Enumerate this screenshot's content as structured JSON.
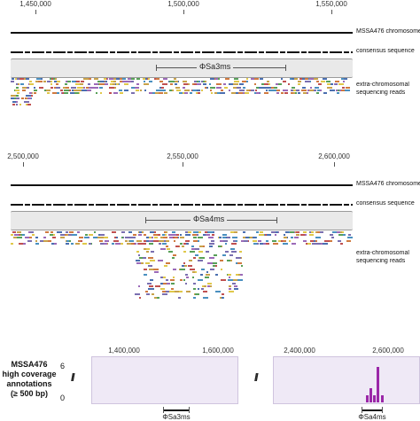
{
  "panel1": {
    "ticks": [
      "1,450,000",
      "1,500,000",
      "1,550,000"
    ],
    "track_labels": [
      "MSSA476 chromosome",
      "consensus sequence",
      "extra-chromosomal",
      "sequencing reads"
    ],
    "phage": "ΦSa3ms"
  },
  "panel2": {
    "ticks": [
      "2,500,000",
      "2,550,000",
      "2,600,000"
    ],
    "track_labels": [
      "MSSA476 chromosome",
      "consensus sequence",
      "extra-chromosomal",
      "sequencing reads"
    ],
    "phage": "ΦSa4ms"
  },
  "bottom": {
    "ylabel_lines": [
      "MSSA476",
      "high coverage",
      "annotations",
      "(≥ 500 bp)"
    ],
    "ymax": "6",
    "ymin": "0",
    "ticks_left": [
      "1,400,000",
      "1,600,000"
    ],
    "ticks_right": [
      "2,400,000",
      "2,600,000"
    ],
    "break_symbol": "//",
    "phage_labels": [
      "ΦSa3ms",
      "ΦSa4ms"
    ],
    "bars": [
      1,
      2,
      1,
      5,
      1
    ]
  },
  "colors": {
    "bar": "#9b27a8",
    "panel": "#efe9f6"
  }
}
